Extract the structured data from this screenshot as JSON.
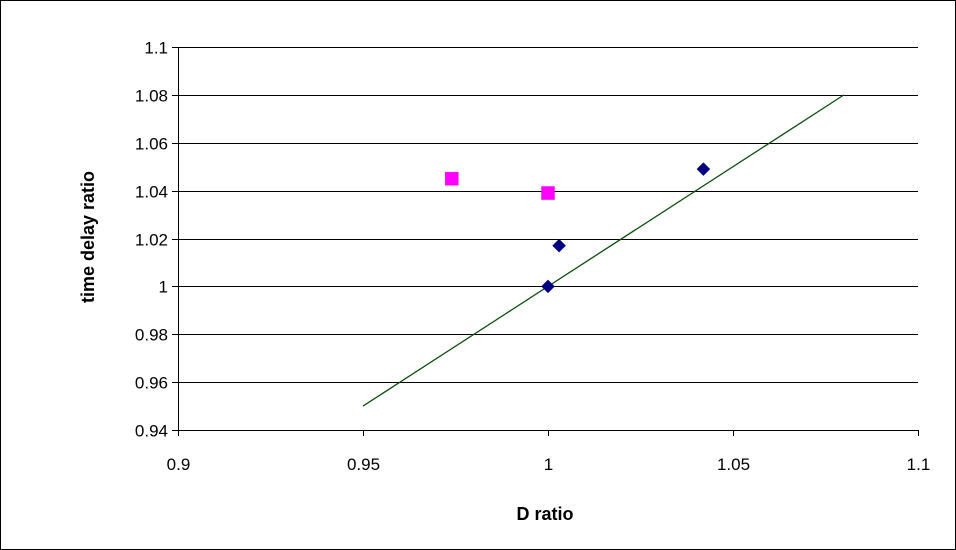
{
  "chart_data": {
    "type": "scatter",
    "title": "",
    "xlabel": "D ratio",
    "ylabel": "time delay ratio",
    "xlim": [
      0.9,
      1.1
    ],
    "ylim": [
      0.94,
      1.1
    ],
    "x_ticks": [
      0.9,
      0.95,
      1.0,
      1.05,
      1.1
    ],
    "x_tick_labels": [
      "0.9",
      "0.95",
      "1",
      "1.05",
      "1.1"
    ],
    "y_ticks": [
      0.94,
      0.96,
      0.98,
      1.0,
      1.02,
      1.04,
      1.06,
      1.08,
      1.1
    ],
    "y_tick_labels": [
      "0.94",
      "0.96",
      "0.98",
      "1",
      "1.02",
      "1.04",
      "1.06",
      "1.08",
      "1.1"
    ],
    "grid": "horizontal",
    "legend": "none",
    "series": [
      {
        "marker": "diamond",
        "color": "#000080",
        "points": [
          {
            "x": 1.0,
            "y": 1.0
          },
          {
            "x": 1.003,
            "y": 1.017
          },
          {
            "x": 1.042,
            "y": 1.049
          }
        ]
      },
      {
        "marker": "square",
        "color": "#ff00ff",
        "points": [
          {
            "x": 0.974,
            "y": 1.045
          },
          {
            "x": 1.0,
            "y": 1.039
          }
        ]
      }
    ],
    "lines": [
      {
        "color": "#0a4d0a",
        "points": [
          {
            "x": 0.95,
            "y": 0.95
          },
          {
            "x": 1.08,
            "y": 1.08
          }
        ]
      }
    ]
  }
}
